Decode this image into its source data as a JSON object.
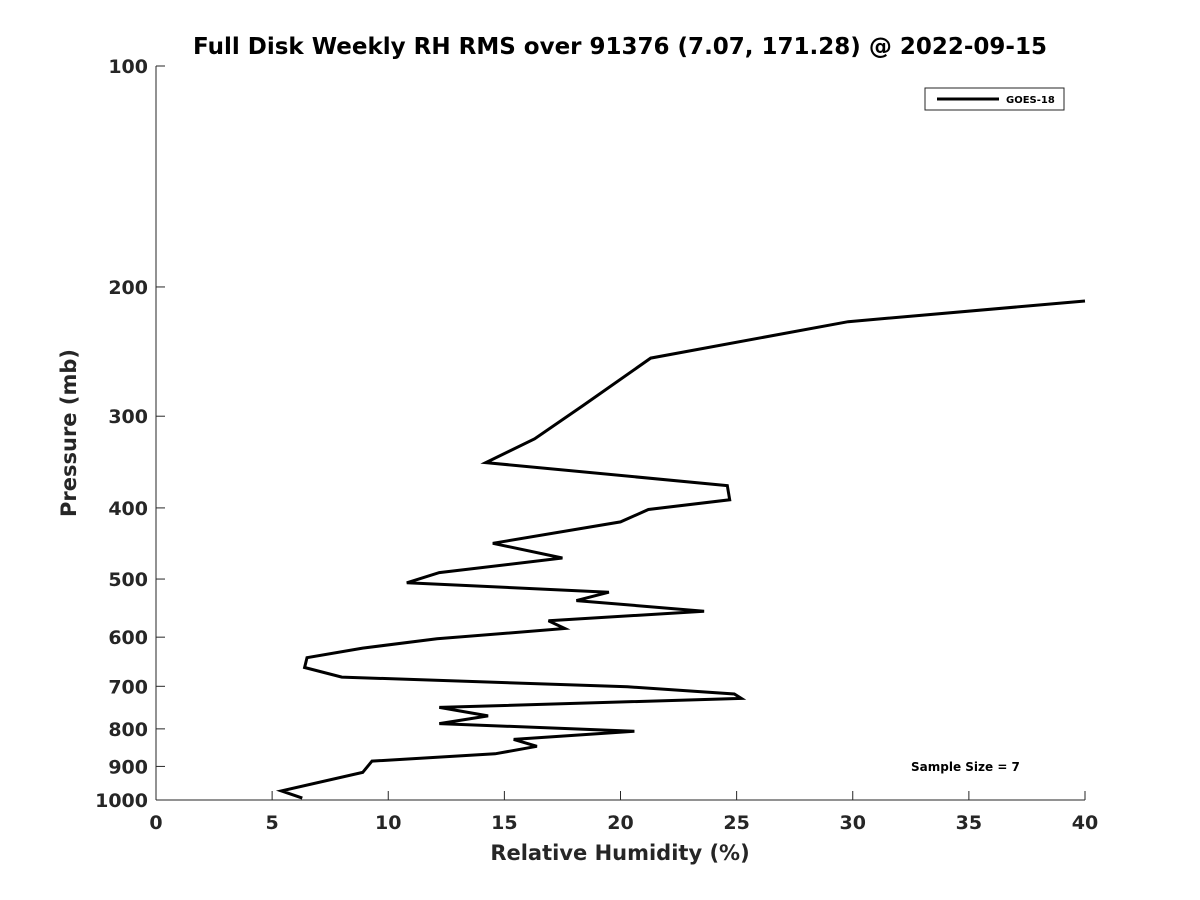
{
  "chart_data": {
    "type": "line",
    "title": "Full Disk Weekly RH RMS over 91376 (7.07, 171.28) @ 2022-09-15",
    "xlabel": "Relative Humidity (%)",
    "ylabel": "Pressure (mb)",
    "xlim": [
      0,
      40
    ],
    "ylim": [
      1000,
      100
    ],
    "yscale": "log",
    "x_ticks": [
      0,
      5,
      10,
      15,
      20,
      25,
      30,
      35,
      40
    ],
    "y_ticks": [
      100,
      200,
      300,
      400,
      500,
      600,
      700,
      800,
      900,
      1000
    ],
    "grid": false,
    "legend_position": "top-right",
    "annotation": "Sample Size = 7",
    "series": [
      {
        "name": "GOES-18",
        "color": "#000000",
        "points": [
          [
            40.0,
            209
          ],
          [
            29.8,
            223
          ],
          [
            21.3,
            250
          ],
          [
            18.4,
            290
          ],
          [
            16.3,
            322
          ],
          [
            14.2,
            347
          ],
          [
            24.6,
            373
          ],
          [
            24.7,
            390
          ],
          [
            21.2,
            402
          ],
          [
            20.0,
            418
          ],
          [
            14.5,
            447
          ],
          [
            17.5,
            468
          ],
          [
            12.2,
            490
          ],
          [
            10.8,
            506
          ],
          [
            19.5,
            521
          ],
          [
            18.1,
            535
          ],
          [
            23.6,
            553
          ],
          [
            16.9,
            570
          ],
          [
            17.6,
            584
          ],
          [
            12.1,
            603
          ],
          [
            8.9,
            621
          ],
          [
            6.5,
            640
          ],
          [
            6.4,
            660
          ],
          [
            8.0,
            680
          ],
          [
            20.3,
            701
          ],
          [
            24.9,
            717
          ],
          [
            25.2,
            727
          ],
          [
            12.2,
            748
          ],
          [
            14.3,
            768
          ],
          [
            12.2,
            787
          ],
          [
            20.6,
            806
          ],
          [
            15.4,
            827
          ],
          [
            16.4,
            845
          ],
          [
            14.6,
            865
          ],
          [
            9.3,
            885
          ],
          [
            8.9,
            917
          ],
          [
            5.4,
            972
          ],
          [
            6.3,
            994
          ]
        ]
      }
    ]
  }
}
